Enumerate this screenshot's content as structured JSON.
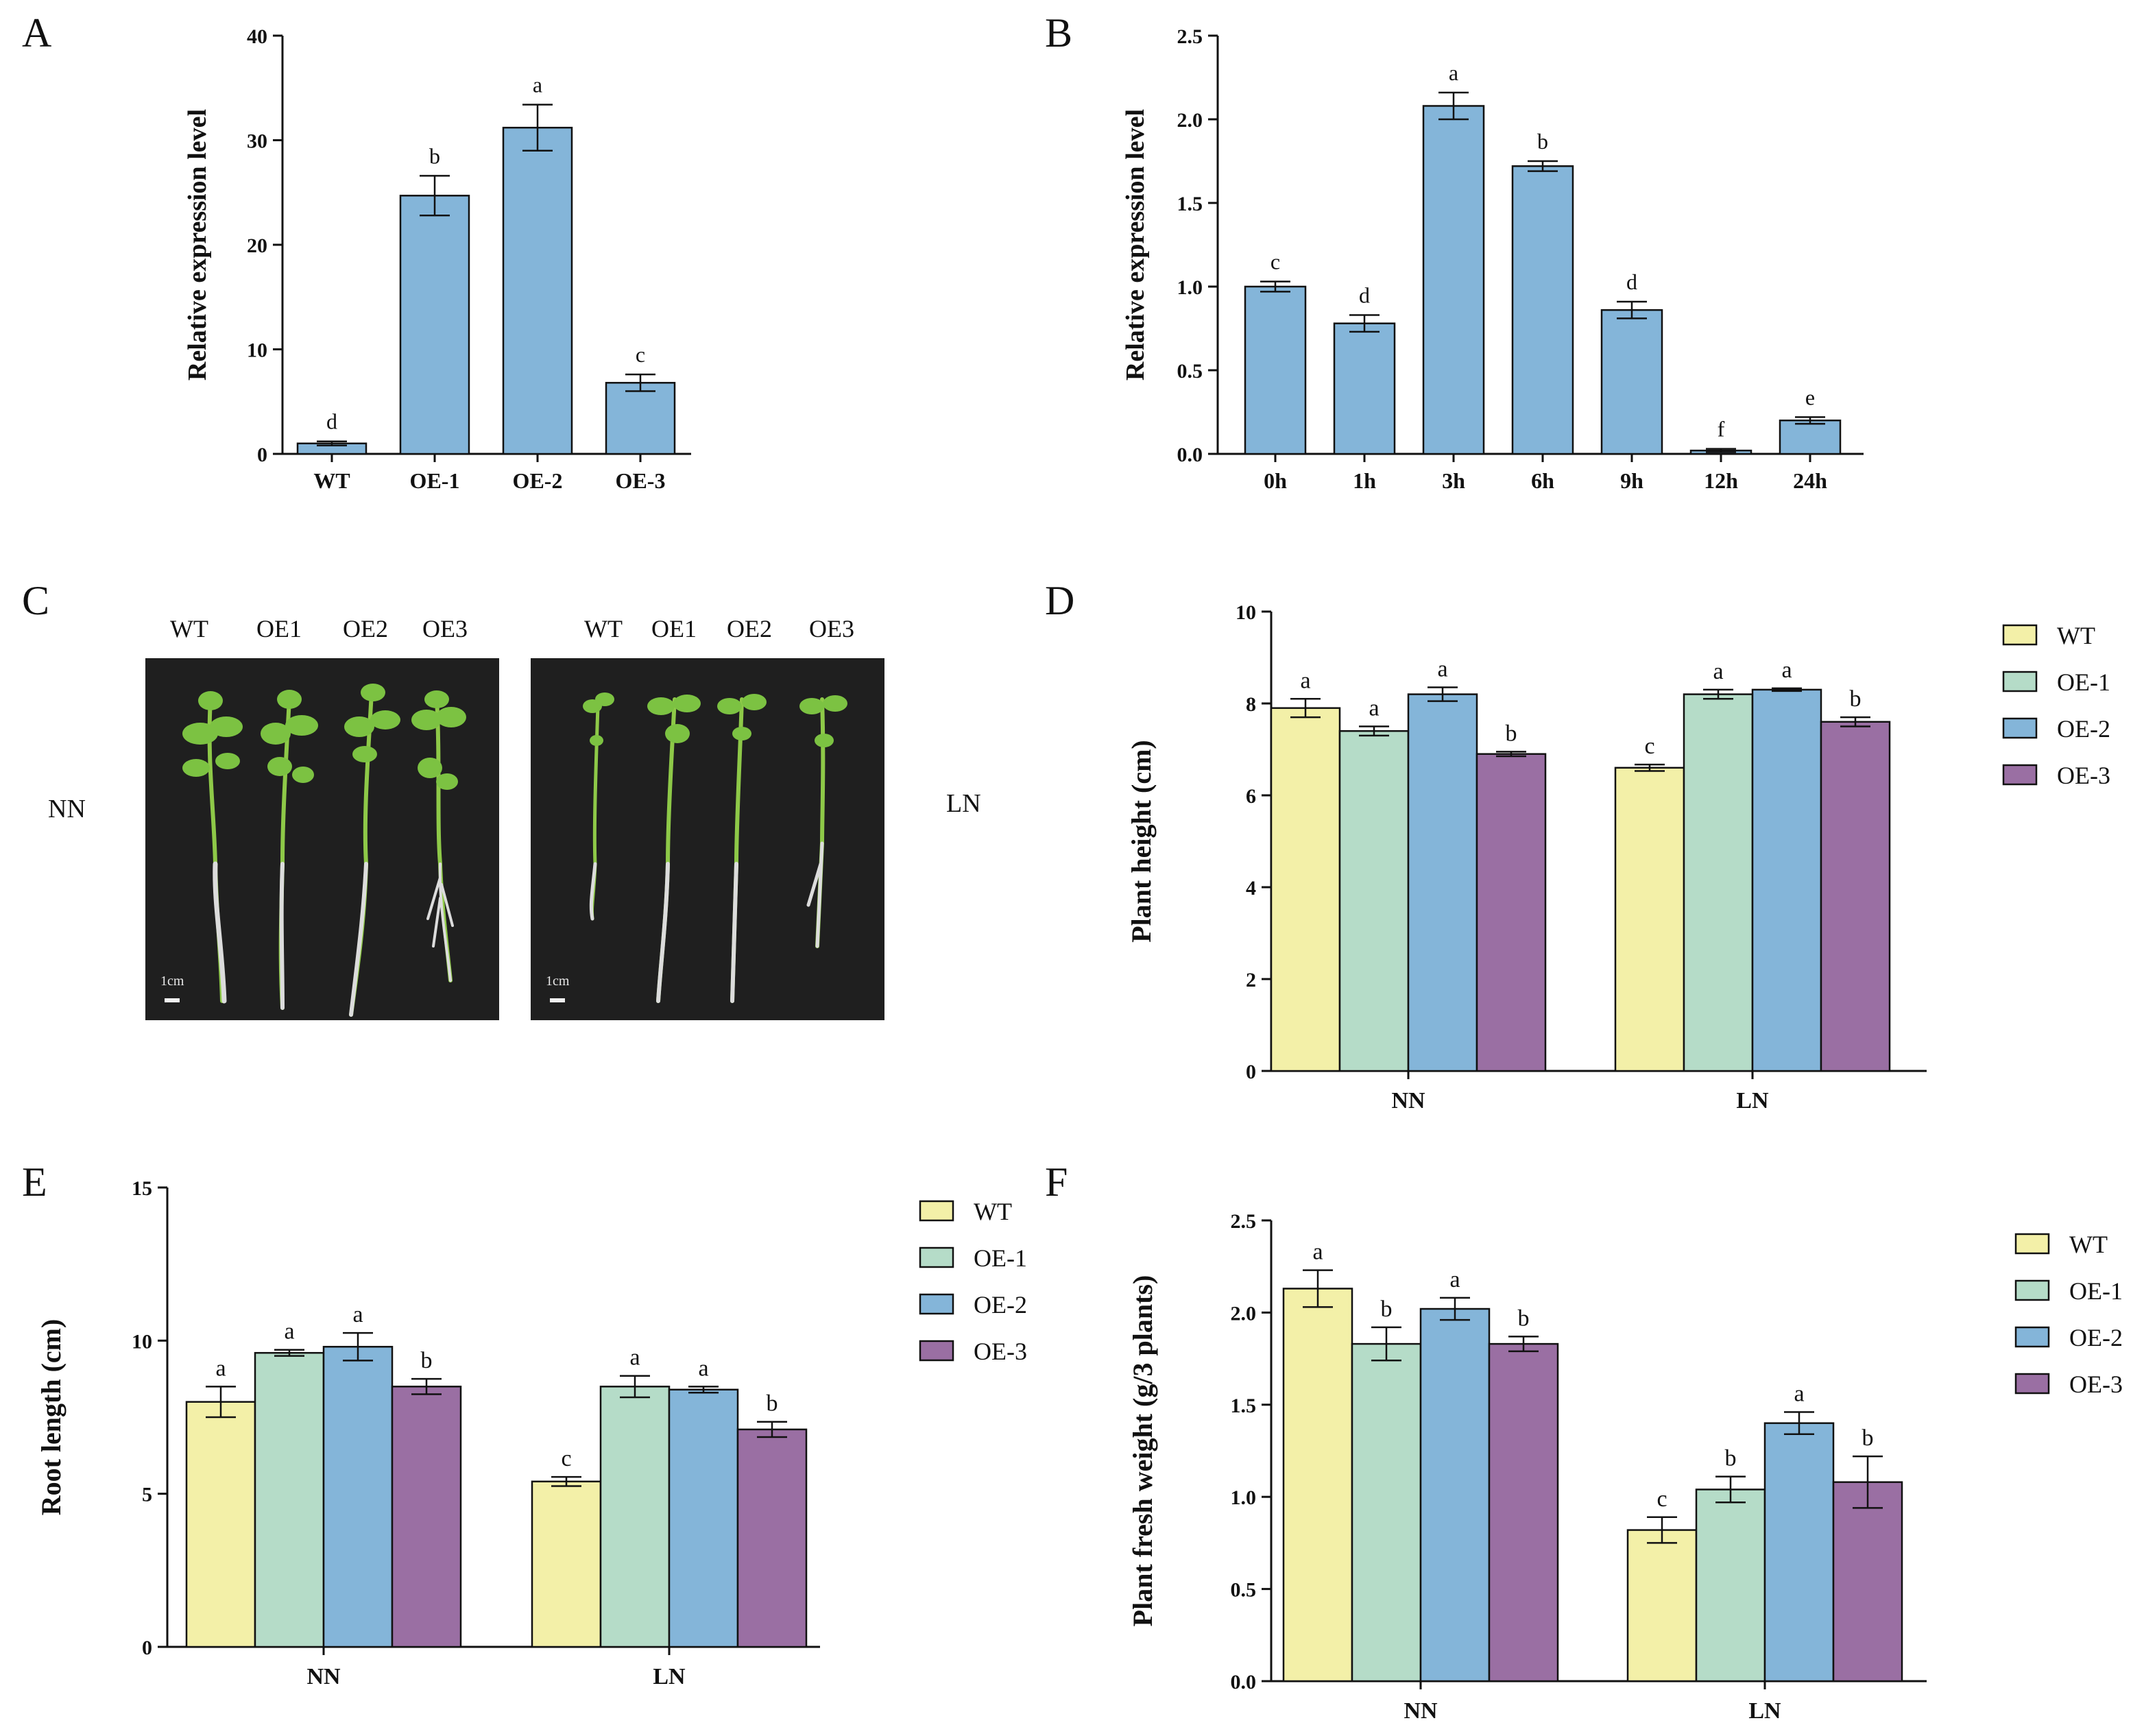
{
  "panel_labels": [
    "A",
    "B",
    "C",
    "D",
    "E",
    "F"
  ],
  "photo": {
    "headers_left": [
      "WT",
      "OE1",
      "OE2",
      "OE3"
    ],
    "headers_right": [
      "WT",
      "OE1",
      "OE2",
      "OE3"
    ],
    "condition_left": "NN",
    "condition_right": "LN",
    "scale_label": "1cm"
  },
  "colors": {
    "WT": "#f3f0a8",
    "OE-1": "#b5dcc8",
    "OE-2": "#84b5d9",
    "OE-3": "#9a6fa3",
    "single": "#84b5d9",
    "photo_bg": "#1f1f1f",
    "plant_green": "#7cc242",
    "root": "#dcdcdc"
  },
  "chart_data": [
    {
      "panel": "A",
      "type": "bar",
      "ylabel": "Relative expression level",
      "xlabel": "",
      "ylim": [
        0,
        40
      ],
      "yticks": [
        0,
        10,
        20,
        30,
        40
      ],
      "categories": [
        "WT",
        "OE-1",
        "OE-2",
        "OE-3"
      ],
      "values": [
        1.0,
        24.7,
        31.2,
        6.8
      ],
      "errors": [
        0.2,
        1.9,
        2.2,
        0.8
      ],
      "letters": [
        "d",
        "b",
        "a",
        "c"
      ]
    },
    {
      "panel": "B",
      "type": "bar",
      "ylabel": "Relative expression level",
      "xlabel": "",
      "ylim": [
        0,
        2.5
      ],
      "yticks": [
        "0.0",
        "0.5",
        "1.0",
        "1.5",
        "2.0",
        "2.5"
      ],
      "categories": [
        "0h",
        "1h",
        "3h",
        "6h",
        "9h",
        "12h",
        "24h"
      ],
      "values": [
        1.0,
        0.78,
        2.08,
        1.72,
        0.86,
        0.02,
        0.2
      ],
      "errors": [
        0.03,
        0.05,
        0.08,
        0.03,
        0.05,
        0.01,
        0.02
      ],
      "letters": [
        "c",
        "d",
        "a",
        "b",
        "d",
        "f",
        "e"
      ]
    },
    {
      "panel": "D",
      "type": "bar",
      "ylabel": "Plant height (cm)",
      "xlabel": "",
      "ylim": [
        0,
        10
      ],
      "yticks": [
        0,
        2,
        4,
        6,
        8,
        10
      ],
      "categories": [
        "NN",
        "LN"
      ],
      "legend": [
        "WT",
        "OE-1",
        "OE-2",
        "OE-3"
      ],
      "series": [
        {
          "name": "WT",
          "values": [
            7.9,
            6.6
          ],
          "errors": [
            0.2,
            0.07
          ],
          "letters": [
            "a",
            "c"
          ]
        },
        {
          "name": "OE-1",
          "values": [
            7.4,
            8.2
          ],
          "errors": [
            0.1,
            0.1
          ],
          "letters": [
            "a",
            "a"
          ]
        },
        {
          "name": "OE-2",
          "values": [
            8.2,
            8.3
          ],
          "errors": [
            0.15,
            0.03
          ],
          "letters": [
            "a",
            "a"
          ]
        },
        {
          "name": "OE-3",
          "values": [
            6.9,
            7.6
          ],
          "errors": [
            0.05,
            0.1
          ],
          "letters": [
            "b",
            "b"
          ]
        }
      ]
    },
    {
      "panel": "E",
      "type": "bar",
      "ylabel": "Root length (cm)",
      "xlabel": "",
      "ylim": [
        0,
        15
      ],
      "yticks": [
        0,
        5,
        10,
        15
      ],
      "categories": [
        "NN",
        "LN"
      ],
      "legend": [
        "WT",
        "OE-1",
        "OE-2",
        "OE-3"
      ],
      "series": [
        {
          "name": "WT",
          "values": [
            8.0,
            5.4
          ],
          "errors": [
            0.5,
            0.15
          ],
          "letters": [
            "a",
            "c"
          ]
        },
        {
          "name": "OE-1",
          "values": [
            9.6,
            8.5
          ],
          "errors": [
            0.1,
            0.35
          ],
          "letters": [
            "a",
            "a"
          ]
        },
        {
          "name": "OE-2",
          "values": [
            9.8,
            8.4
          ],
          "errors": [
            0.45,
            0.1
          ],
          "letters": [
            "a",
            "a"
          ]
        },
        {
          "name": "OE-3",
          "values": [
            8.5,
            7.1
          ],
          "errors": [
            0.25,
            0.25
          ],
          "letters": [
            "b",
            "b"
          ]
        }
      ]
    },
    {
      "panel": "F",
      "type": "bar",
      "ylabel": "Plant fresh weight (g/3 plants)",
      "xlabel": "",
      "ylim": [
        0,
        2.5
      ],
      "yticks": [
        "0.0",
        "0.5",
        "1.0",
        "1.5",
        "2.0",
        "2.5"
      ],
      "categories": [
        "NN",
        "LN"
      ],
      "legend": [
        "WT",
        "OE-1",
        "OE-2",
        "OE-3"
      ],
      "series": [
        {
          "name": "WT",
          "values": [
            2.13,
            0.82
          ],
          "errors": [
            0.1,
            0.07
          ],
          "letters": [
            "a",
            "c"
          ]
        },
        {
          "name": "OE-1",
          "values": [
            1.83,
            1.04
          ],
          "errors": [
            0.09,
            0.07
          ],
          "letters": [
            "b",
            "b"
          ]
        },
        {
          "name": "OE-2",
          "values": [
            2.02,
            1.4
          ],
          "errors": [
            0.06,
            0.06
          ],
          "letters": [
            "a",
            "a"
          ]
        },
        {
          "name": "OE-3",
          "values": [
            1.83,
            1.08
          ],
          "errors": [
            0.04,
            0.14
          ],
          "letters": [
            "b",
            "b"
          ]
        }
      ]
    }
  ]
}
